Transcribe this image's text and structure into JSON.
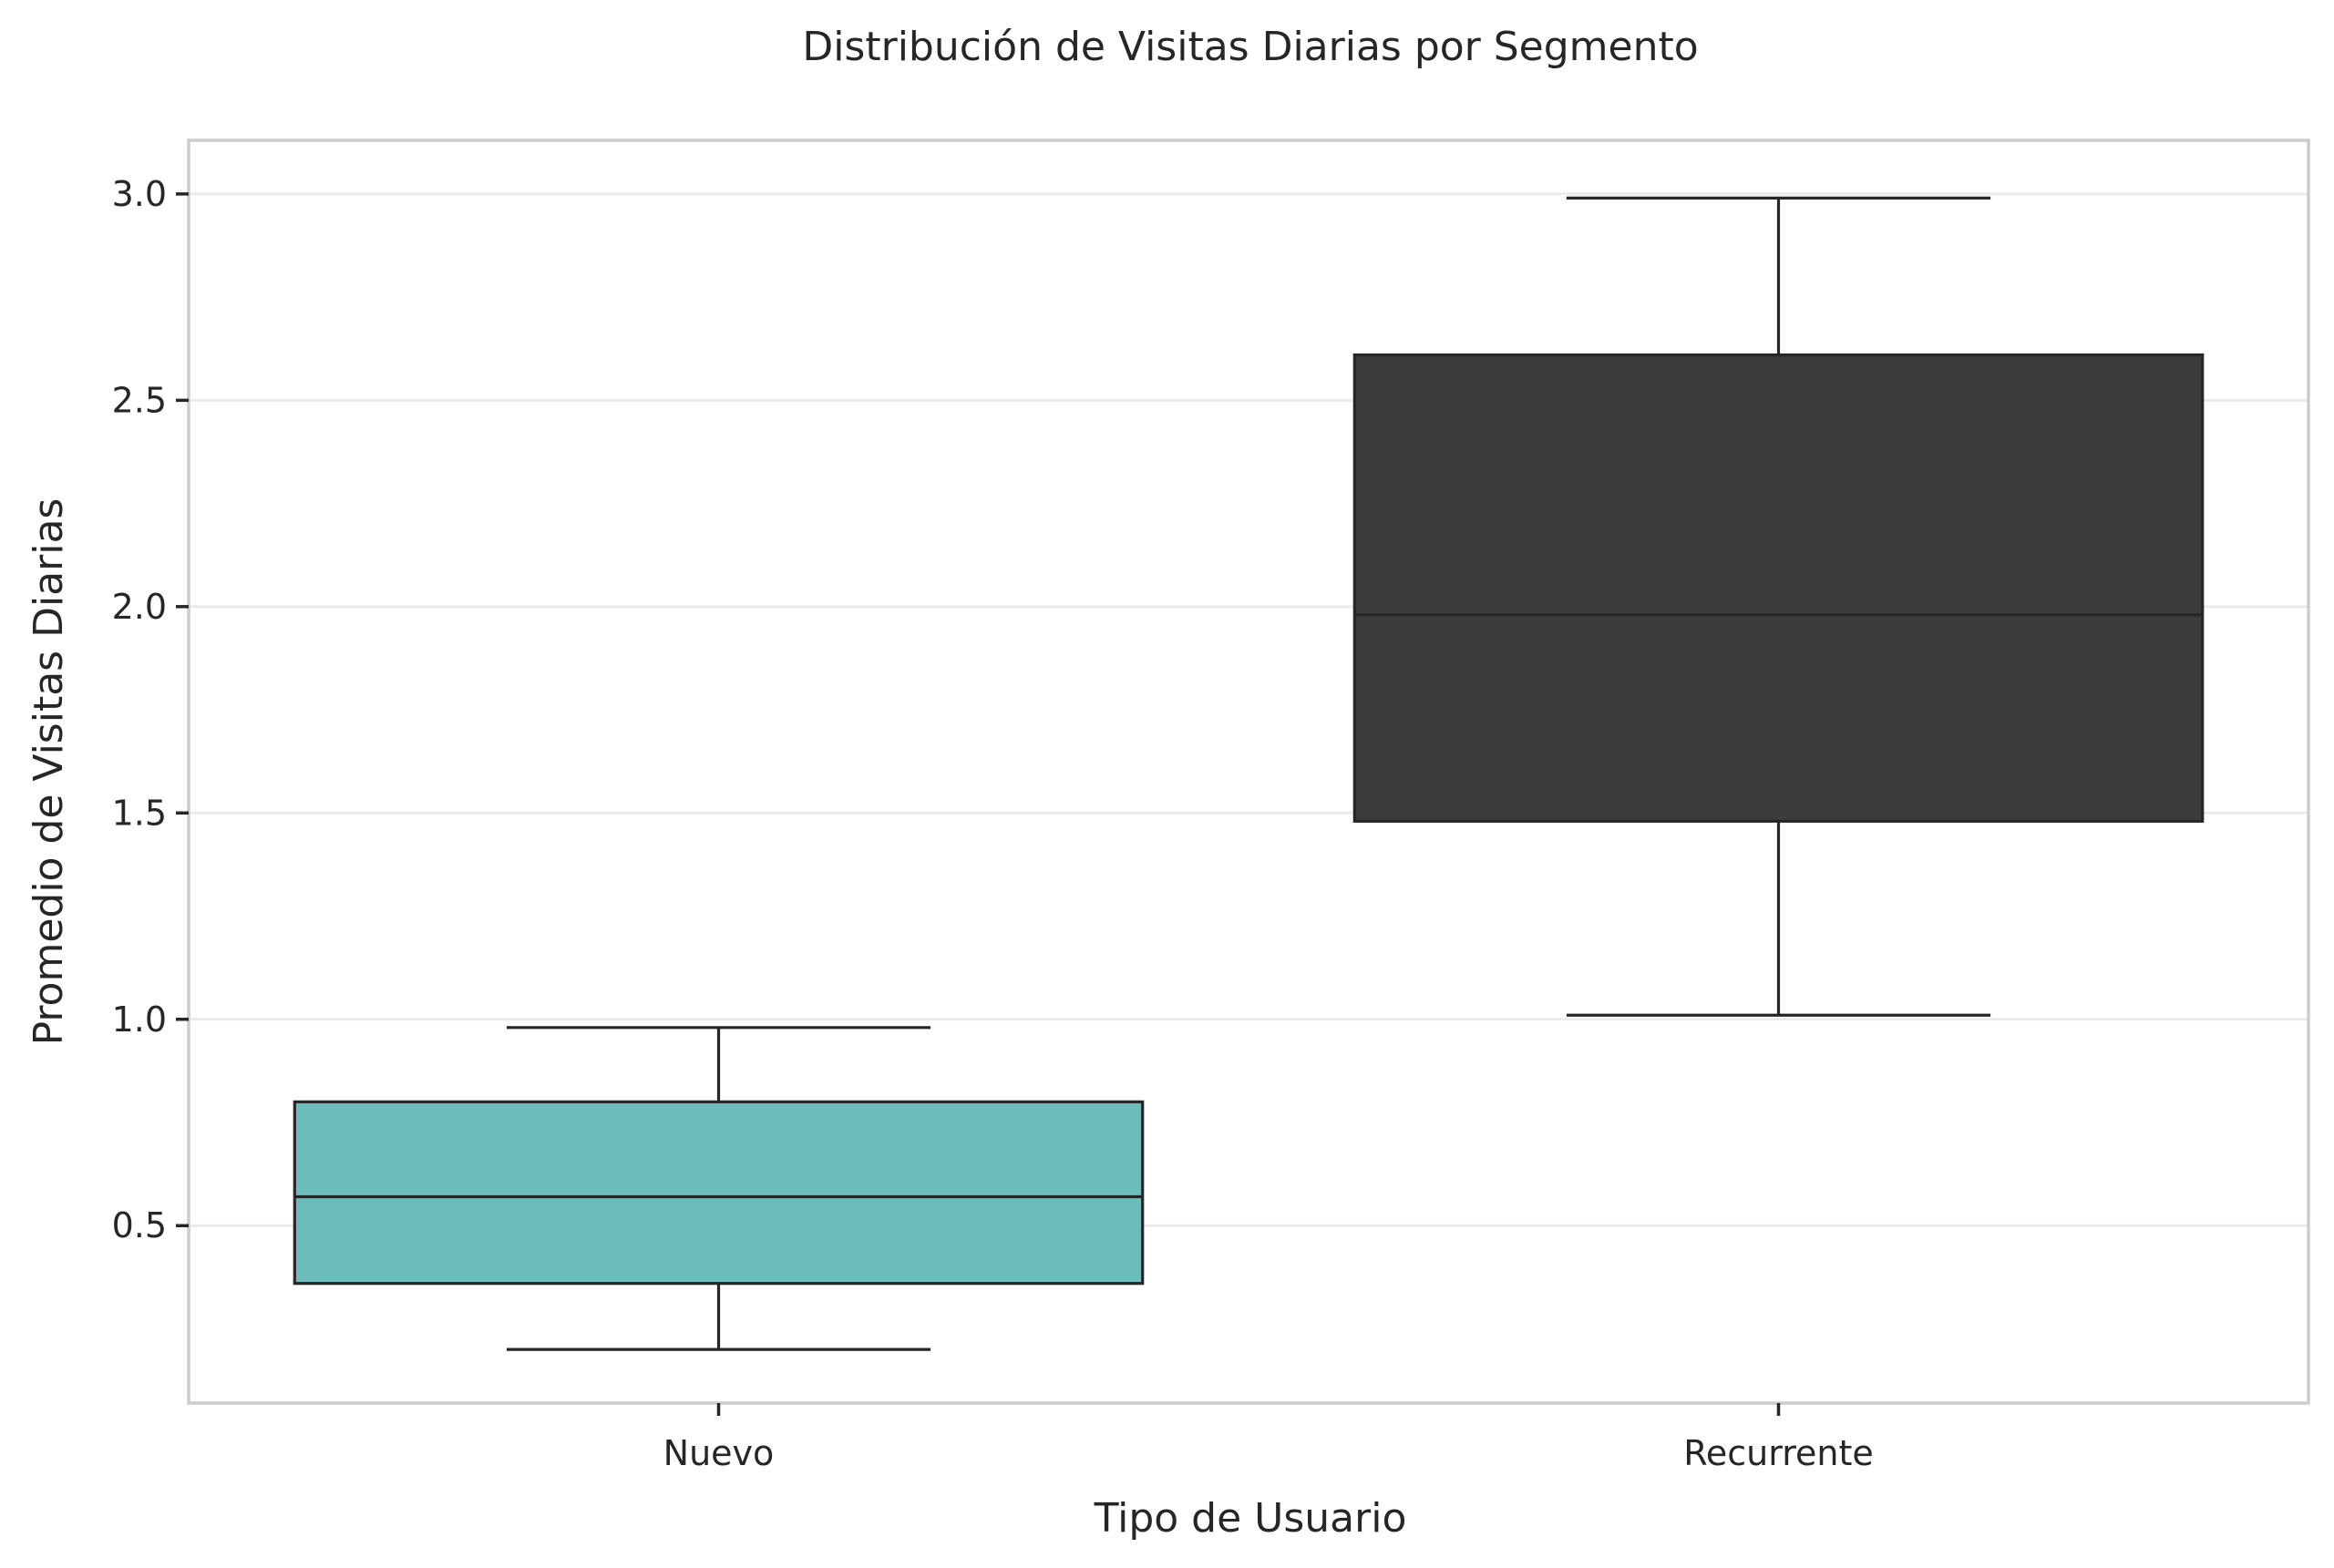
{
  "chart_data": {
    "type": "box",
    "title": "Distribución de Visitas Diarias por Segmento",
    "xlabel": "Tipo de Usuario",
    "ylabel": "Promedio de Visitas Diarias",
    "categories": [
      "Nuevo",
      "Recurrente"
    ],
    "ylim": [
      0.07,
      3.13
    ],
    "yticks": [
      0.5,
      1.0,
      1.5,
      2.0,
      2.5,
      3.0
    ],
    "ytick_labels": [
      "0.5",
      "1.0",
      "1.5",
      "2.0",
      "2.5",
      "3.0"
    ],
    "grid": "horizontal",
    "boxes": [
      {
        "category": "Nuevo",
        "whisker_low": 0.2,
        "q1": 0.36,
        "median": 0.57,
        "q3": 0.8,
        "whisker_high": 0.98,
        "color": "#6bbdbc"
      },
      {
        "category": "Recurrente",
        "whisker_low": 1.01,
        "q1": 1.48,
        "median": 1.98,
        "q3": 2.61,
        "whisker_high": 2.99,
        "color": "#3c3c3c"
      }
    ]
  }
}
